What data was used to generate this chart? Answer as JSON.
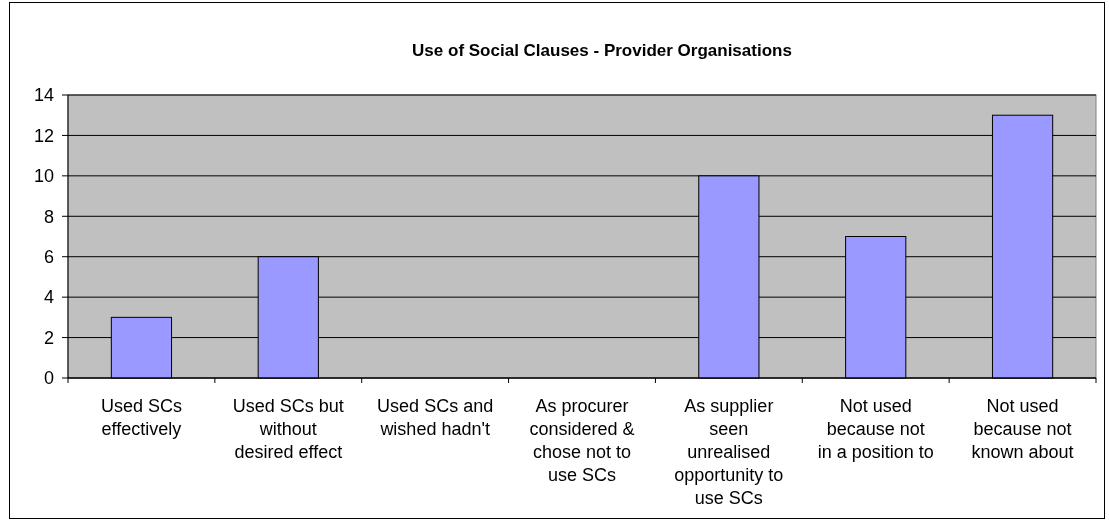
{
  "chart_data": {
    "type": "bar",
    "title": "Use of Social Clauses - Provider Organisations",
    "categories": [
      "Used SCs effectively",
      "Used SCs but without desired effect",
      "Used SCs and wished hadn't",
      "As procurer considered & chose not to use SCs",
      "As supplier seen unrealised opportunity to use SCs",
      "Not used because not in a position to",
      "Not used because not known about"
    ],
    "values": [
      3,
      6,
      0,
      0,
      10,
      7,
      13
    ],
    "color": "#9999ff",
    "ylim": [
      0,
      14
    ],
    "yticks": [
      0,
      2,
      4,
      6,
      8,
      10,
      12,
      14
    ],
    "grid": "y"
  }
}
